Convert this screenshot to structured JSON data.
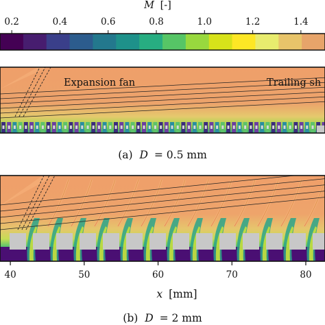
{
  "colorbar": {
    "label_var": "M",
    "label_unit": "[-]",
    "ticks": [
      "0.2",
      "0.4",
      "0.6",
      "0.8",
      "1.0",
      "1.2",
      "1.4"
    ],
    "colors": [
      "#440154",
      "#471d6f",
      "#3a3f8a",
      "#2c5c8d",
      "#23788d",
      "#1e918a",
      "#27ad81",
      "#56c566",
      "#98d83e",
      "#d7e21a",
      "#fde725",
      "#e8ec6e",
      "#e8c46a",
      "#e7a46a"
    ]
  },
  "panel_a": {
    "caption_prefix": "(a)",
    "caption_var": "D",
    "caption_value": "= 0.5 mm",
    "annotation_left": "Expansion fan",
    "annotation_right": "Trailing sh"
  },
  "panel_b": {
    "caption_prefix": "(b)",
    "caption_var": "D",
    "caption_value": "= 2 mm"
  },
  "x_axis": {
    "label_var": "x",
    "label_unit": "[mm]",
    "ticks": [
      "40",
      "50",
      "60",
      "70",
      "80"
    ]
  },
  "colors": {
    "freestream": "#eea26b",
    "porous_solid": "#c8c8c8",
    "low_mach": "#4a0f73",
    "frame": "#111111"
  },
  "chart_data": [
    {
      "type": "heatmap",
      "title": "(a) D = 0.5 mm",
      "quantity": "M [-]",
      "colorbar_ticks": [
        0.2,
        0.4,
        0.6,
        0.8,
        1.0,
        1.2,
        1.4
      ],
      "annotations": [
        "Expansion fan",
        "Trailing sh"
      ]
    },
    {
      "type": "heatmap",
      "title": "(b) D = 2 mm",
      "quantity": "M [-]",
      "xlabel": "x [mm]",
      "x_ticks": [
        40,
        50,
        60,
        70,
        80
      ],
      "colorbar_ticks": [
        0.2,
        0.4,
        0.6,
        0.8,
        1.0,
        1.2,
        1.4
      ]
    }
  ]
}
